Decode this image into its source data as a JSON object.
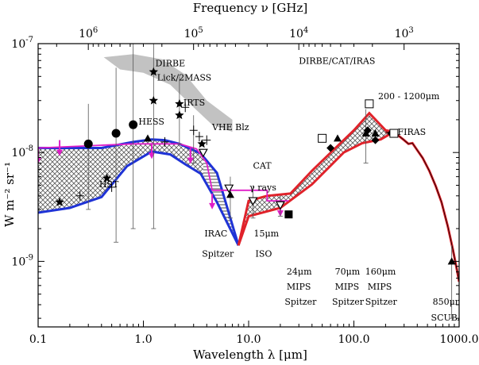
{
  "chart_data": {
    "type": "scatter",
    "title": "",
    "xlabel": "Wavelength λ [μm]",
    "ylabel": "W m⁻² sr⁻¹",
    "top_xlabel": "Frequency ν [GHz]",
    "xscale": "log",
    "yscale": "log",
    "xlim": [
      0.1,
      1000
    ],
    "ylim": [
      2.5e-10,
      1e-07
    ],
    "x_ticks": [
      {
        "value": 0.1,
        "label": "0.1"
      },
      {
        "value": 1,
        "label": "1.0"
      },
      {
        "value": 10,
        "label": "10.0"
      },
      {
        "value": 100,
        "label": "100.0"
      },
      {
        "value": 1000,
        "label": "1000.0"
      }
    ],
    "y_ticks": [
      {
        "value": 1e-09,
        "base": "10",
        "exp": "-9"
      },
      {
        "value": 1e-08,
        "base": "10",
        "exp": "-8"
      },
      {
        "value": 1e-07,
        "base": "10",
        "exp": "-7"
      }
    ],
    "top_ticks": [
      {
        "wavelength": 0.2998,
        "base": "10",
        "exp": "6"
      },
      {
        "wavelength": 2.998,
        "base": "10",
        "exp": "5"
      },
      {
        "wavelength": 29.98,
        "base": "10",
        "exp": "4"
      },
      {
        "wavelength": 299.8,
        "base": "10",
        "exp": "3"
      }
    ],
    "colors": {
      "cob_band": "#1f33d6",
      "cib_band": "#e0222a",
      "gamma_limit": "#e01ec8",
      "gray_band": "#c2c2c2",
      "hatch": "#5a5a5a"
    },
    "cob_upper": [
      [
        0.1,
        1.1e-08
      ],
      [
        0.2,
        1.1e-08
      ],
      [
        0.4,
        1.1e-08
      ],
      [
        0.8,
        1.25e-08
      ],
      [
        1.2,
        1.32e-08
      ],
      [
        1.6,
        1.3e-08
      ],
      [
        2.2,
        1.2e-08
      ],
      [
        3.5,
        9.8e-09
      ],
      [
        5,
        6.5e-09
      ],
      [
        8,
        1.4e-09
      ]
    ],
    "cob_lower": [
      [
        0.1,
        2.8e-09
      ],
      [
        0.2,
        3.1e-09
      ],
      [
        0.4,
        3.9e-09
      ],
      [
        0.7,
        7.5e-09
      ],
      [
        1.2,
        1.02e-08
      ],
      [
        1.8,
        9.6e-09
      ],
      [
        2.5,
        7.8e-09
      ],
      [
        3.5,
        6.4e-09
      ],
      [
        5,
        3.5e-09
      ],
      [
        8,
        1.4e-09
      ]
    ],
    "cib_upper": [
      [
        8,
        1.4e-09
      ],
      [
        10,
        3.6e-09
      ],
      [
        15,
        4e-09
      ],
      [
        25,
        4.2e-09
      ],
      [
        40,
        6.8e-09
      ],
      [
        70,
        1.15e-08
      ],
      [
        100,
        1.6e-08
      ],
      [
        140,
        2.3e-08
      ],
      [
        200,
        1.6e-08
      ],
      [
        240,
        1.55e-08
      ]
    ],
    "cib_lower": [
      [
        8,
        1.4e-09
      ],
      [
        10,
        2.6e-09
      ],
      [
        20,
        3.1e-09
      ],
      [
        40,
        5.1e-09
      ],
      [
        80,
        1e-08
      ],
      [
        120,
        1.22e-08
      ],
      [
        180,
        1.32e-08
      ],
      [
        240,
        1.55e-08
      ]
    ],
    "firas_curve": [
      [
        200,
        1.55e-08
      ],
      [
        260,
        1.45e-08
      ],
      [
        300,
        1.3e-08
      ],
      [
        330,
        1.2e-08
      ],
      [
        360,
        1.22e-08
      ],
      [
        400,
        1.05e-08
      ],
      [
        450,
        8.9e-09
      ],
      [
        520,
        6.8e-09
      ],
      [
        600,
        4.9e-09
      ],
      [
        680,
        3.5e-09
      ],
      [
        780,
        2.1e-09
      ],
      [
        870,
        1.3e-09
      ],
      [
        950,
        8.5e-10
      ],
      [
        1000,
        6.5e-10
      ]
    ],
    "gamma_limit_line": [
      [
        0.1,
        1.1e-08
      ],
      [
        0.8,
        1.2e-08
      ],
      [
        2.2,
        1.2e-08
      ],
      [
        3.2,
        1.08e-08
      ],
      [
        4,
        8e-09
      ],
      [
        4.5,
        4.5e-09
      ],
      [
        15,
        4.5e-09
      ],
      [
        15,
        3.6e-09
      ],
      [
        24,
        3.6e-09
      ]
    ],
    "gamma_arrows": [
      [
        0.1,
        1.1e-08
      ],
      [
        0.16,
        1.3e-08
      ],
      [
        1.2,
        1.22e-08
      ],
      [
        2.8,
        1.1e-08
      ],
      [
        4.5,
        4.2e-09
      ],
      [
        20,
        3.6e-09
      ]
    ],
    "gray_band_lambda_range": [
      0.4,
      7
    ],
    "circles": [
      [
        0.3,
        1.2e-08
      ],
      [
        0.55,
        1.5e-08
      ],
      [
        0.8,
        1.8e-08
      ]
    ],
    "stars": [
      [
        0.16,
        3.5e-09
      ],
      [
        0.45,
        5.8e-09
      ],
      [
        1.25,
        5.5e-08
      ],
      [
        1.25,
        3e-08
      ],
      [
        2.2,
        2.8e-08
      ],
      [
        2.2,
        2.2e-08
      ],
      [
        3.6,
        1.2e-08
      ]
    ],
    "triangles_up": [
      [
        1.1,
        1.35e-08
      ],
      [
        6.7,
        4.1e-09
      ],
      [
        70,
        1.35e-08
      ],
      [
        130,
        1.5e-08
      ],
      [
        160,
        1.5e-08
      ],
      [
        850,
        1e-09
      ]
    ],
    "triangles_down": [
      [
        3.7,
        1e-08
      ],
      [
        6.5,
        4.7e-09
      ],
      [
        11,
        3.6e-09
      ],
      [
        20,
        3.3e-09
      ]
    ],
    "diamonds": [
      [
        60,
        1.1e-08
      ],
      [
        135,
        1.6e-08
      ],
      [
        160,
        1.3e-08
      ],
      [
        225,
        1.5e-08
      ]
    ],
    "squares_open": [
      [
        50,
        1.35e-08
      ],
      [
        140,
        2.8e-08
      ],
      [
        240,
        1.5e-08
      ]
    ],
    "squares_filled": [
      [
        24,
        2.7e-09
      ]
    ],
    "crosses": [
      [
        0.25,
        4e-09
      ],
      [
        0.5,
        4.8e-09
      ],
      [
        2.5,
        2.6e-08
      ],
      [
        3.0,
        1.6e-08
      ],
      [
        3.4,
        1.4e-08
      ],
      [
        4.0,
        1.3e-08
      ],
      [
        1.6,
        1.25e-08
      ]
    ],
    "error_bars": [
      [
        0.3,
        3e-09,
        2.8e-08
      ],
      [
        0.55,
        1.5e-09,
        6e-08
      ],
      [
        0.8,
        2e-09,
        1e-07
      ],
      [
        1.25,
        2e-09,
        1e-07
      ],
      [
        2.2,
        1.2e-08,
        5e-08
      ],
      [
        3.0,
        8e-09,
        2.2e-08
      ],
      [
        6.7,
        2.5e-09,
        6e-09
      ],
      [
        11,
        2.5e-09,
        5e-09
      ],
      [
        20,
        2.6e-09,
        4e-09
      ],
      [
        130,
        8e-09,
        2.5e-08
      ],
      [
        850,
        3e-10,
        1.4e-09
      ]
    ],
    "annotations": [
      {
        "text": "DIRBE",
        "x": 1.3,
        "y": 6.2e-08
      },
      {
        "text": "Lick/2MASS",
        "x": 1.35,
        "y": 4.6e-08
      },
      {
        "text": "IRTS",
        "x": 2.4,
        "y": 2.7e-08
      },
      {
        "text": "VHE Blz",
        "x": 4.5,
        "y": 1.6e-08
      },
      {
        "text": "HESS",
        "x": 0.9,
        "y": 1.8e-08
      },
      {
        "text": "HST",
        "x": 0.38,
        "y": 4.8e-09
      },
      {
        "text": "DIRBE/CAT/IRAS",
        "x": 30,
        "y": 6.5e-08
      },
      {
        "text": "200 - 1200μm",
        "x": 170,
        "y": 3.1e-08
      },
      {
        "text": "FIRAS",
        "x": 260,
        "y": 1.45e-08
      },
      {
        "text": "CAT",
        "x": 11,
        "y": 7.1e-09
      },
      {
        "text": "γ rays",
        "x": 10.2,
        "y": 4.5e-09
      },
      {
        "text": "IRAC",
        "x": 3.8,
        "y": 1.7e-09
      },
      {
        "text": "Spitzer",
        "x": 3.6,
        "y": 1.1e-09
      },
      {
        "text": "15μm",
        "x": 11.2,
        "y": 1.7e-09
      },
      {
        "text": "ISO",
        "x": 11.6,
        "y": 1.1e-09
      },
      {
        "text": "24μm",
        "x": 23,
        "y": 7.6e-10
      },
      {
        "text": "MIPS",
        "x": 23,
        "y": 5.5e-10
      },
      {
        "text": "Spitzer",
        "x": 22,
        "y": 4e-10
      },
      {
        "text": "70μm",
        "x": 66,
        "y": 7.6e-10
      },
      {
        "text": "MIPS",
        "x": 66,
        "y": 5.5e-10
      },
      {
        "text": "Spitzer",
        "x": 62,
        "y": 4e-10
      },
      {
        "text": "160μm",
        "x": 128,
        "y": 7.6e-10
      },
      {
        "text": "MIPS",
        "x": 135,
        "y": 5.5e-10
      },
      {
        "text": "Spitzer",
        "x": 128,
        "y": 4e-10
      },
      {
        "text": "850μm",
        "x": 560,
        "y": 4e-10
      },
      {
        "text": "SCUBA",
        "x": 540,
        "y": 2.85e-10
      }
    ]
  }
}
